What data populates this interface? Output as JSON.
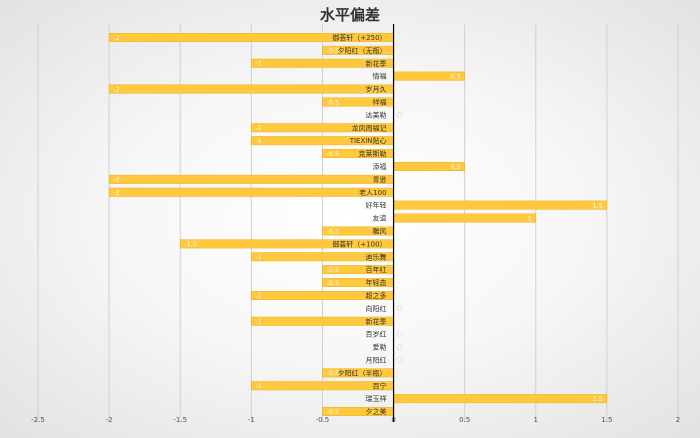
{
  "chart_data": {
    "type": "bar",
    "orientation": "horizontal",
    "title": "水平偏差",
    "xlim": [
      -2.5,
      2
    ],
    "x_ticks": [
      -2.5,
      -2,
      -1.5,
      -1,
      -0.5,
      0,
      0.5,
      1,
      1.5,
      2
    ],
    "grid": true,
    "colors": {
      "bar": "#FFC83D",
      "bar_edge": "#E8A800",
      "label": "#333333",
      "axis": "#000000",
      "grid": "#d0d0d0"
    },
    "categories": [
      "御荟轩（+250）",
      "夕阳红（无瓶）",
      "新花季",
      "情福",
      "岁月久",
      "祥福",
      "达美勒",
      "龙凤周福记",
      "TIEXIN贴心",
      "克莱斯勒",
      "添福",
      "青逊",
      "老人100",
      "好年轻",
      "友谊",
      "雕风",
      "御荟轩（+100）",
      "迪乐舞",
      "百年红",
      "年轻态",
      "超之多",
      "向阳红",
      "新花季",
      "百岁红",
      "爱勒",
      "月阳红",
      "夕阳红（半瓶）",
      "百宁",
      "瑞玉祥",
      "夕之美"
    ],
    "values": [
      -2,
      -0.5,
      -1,
      0.5,
      -2,
      -0.5,
      0,
      -1,
      -1,
      -0.5,
      0.5,
      -2,
      -2,
      1.5,
      1,
      -0.5,
      -1.5,
      -1,
      -0.5,
      -0.5,
      -1,
      0,
      -1,
      0,
      0,
      0,
      -0.5,
      -1,
      1.5,
      -0.5
    ]
  }
}
